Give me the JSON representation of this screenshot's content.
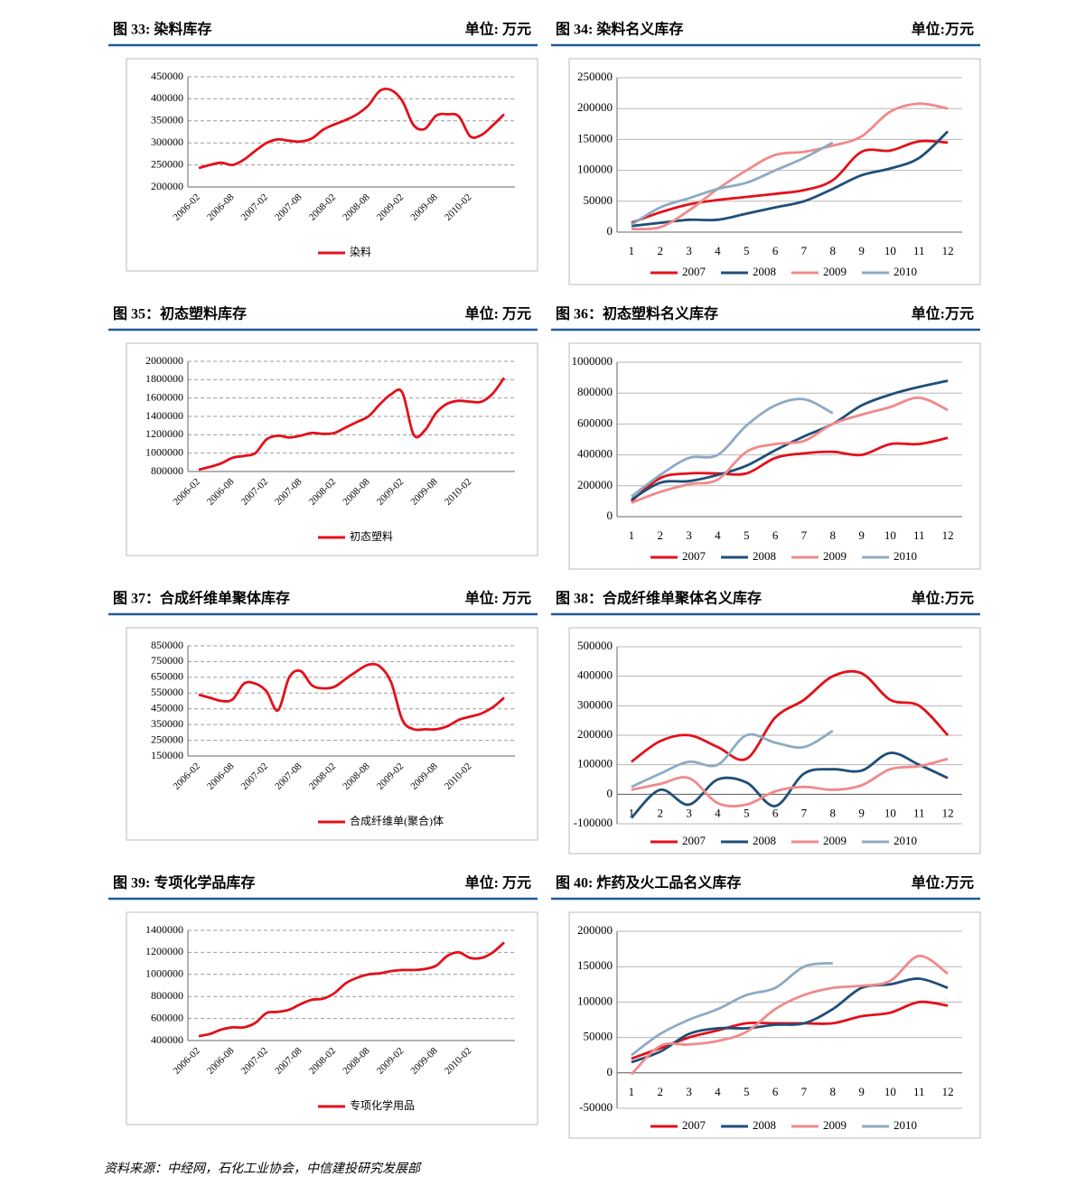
{
  "chart_data": [
    {
      "type": "line",
      "title": "图 33: 染料库存",
      "unit": "单位: 万元",
      "grid": "dashed",
      "legend": "bottom",
      "categories": [
        "2006-02",
        null,
        null,
        "2006-08",
        null,
        null,
        "2007-02",
        null,
        null,
        "2007-08",
        null,
        null,
        "2008-02",
        null,
        null,
        "2008-08",
        null,
        null,
        "2009-02",
        null,
        null,
        "2009-08",
        null,
        null,
        "2010-02",
        null,
        null,
        null
      ],
      "series": [
        {
          "name": "染料",
          "color": "#e3101a",
          "values": [
            243000,
            250000,
            255000,
            250000,
            262000,
            282000,
            300000,
            308000,
            305000,
            303000,
            310000,
            330000,
            342000,
            352000,
            365000,
            385000,
            418000,
            420000,
            395000,
            340000,
            332000,
            362000,
            365000,
            360000,
            315000,
            318000,
            340000,
            365000
          ]
        }
      ],
      "ylim": [
        200000,
        450000
      ],
      "yticks": [
        200000,
        250000,
        300000,
        350000,
        400000,
        450000
      ]
    },
    {
      "type": "line",
      "title": "图 34: 染料名义库存",
      "unit": "单位:万元",
      "grid": "solid",
      "legend": "bottom",
      "categories": [
        "1",
        "2",
        "3",
        "4",
        "5",
        "6",
        "7",
        "8",
        "9",
        "10",
        "11",
        "12"
      ],
      "series": [
        {
          "name": "2007",
          "color": "#e3101a",
          "values": [
            15000,
            32000,
            45000,
            52000,
            57000,
            62000,
            68000,
            84000,
            130000,
            132000,
            147000,
            145000
          ]
        },
        {
          "name": "2008",
          "color": "#1f4e79",
          "values": [
            10000,
            15000,
            20000,
            20000,
            30000,
            40000,
            50000,
            70000,
            92000,
            103000,
            120000,
            163000
          ]
        },
        {
          "name": "2009",
          "color": "#f08a8a",
          "values": [
            5000,
            8000,
            35000,
            70000,
            100000,
            125000,
            130000,
            140000,
            155000,
            195000,
            208000,
            200000
          ]
        },
        {
          "name": "2010",
          "color": "#8eaac4",
          "values": [
            12000,
            40000,
            55000,
            70000,
            80000,
            100000,
            120000,
            145000,
            null,
            null,
            null,
            null
          ]
        }
      ],
      "ylim": [
        0,
        250000
      ],
      "yticks": [
        0,
        50000,
        100000,
        150000,
        200000,
        250000
      ]
    },
    {
      "type": "line",
      "title": "图 35：初态塑料库存",
      "unit": "单位: 万元",
      "grid": "dashed",
      "legend": "bottom",
      "categories": [
        "2006-02",
        null,
        null,
        "2006-08",
        null,
        null,
        "2007-02",
        null,
        null,
        "2007-08",
        null,
        null,
        "2008-02",
        null,
        null,
        "2008-08",
        null,
        null,
        "2009-02",
        null,
        null,
        "2009-08",
        null,
        null,
        "2010-02",
        null,
        null,
        null
      ],
      "series": [
        {
          "name": "初态塑料",
          "color": "#e3101a",
          "values": [
            820000,
            850000,
            890000,
            950000,
            970000,
            1000000,
            1150000,
            1190000,
            1170000,
            1190000,
            1220000,
            1210000,
            1220000,
            1280000,
            1340000,
            1400000,
            1530000,
            1640000,
            1660000,
            1200000,
            1250000,
            1440000,
            1540000,
            1570000,
            1560000,
            1560000,
            1650000,
            1820000
          ]
        }
      ],
      "ylim": [
        800000,
        2000000
      ],
      "yticks": [
        800000,
        1000000,
        1200000,
        1400000,
        1600000,
        1800000,
        2000000
      ]
    },
    {
      "type": "line",
      "title": "图 36：初态塑料名义库存",
      "unit": "单位:万元",
      "grid": "solid",
      "legend": "bottom",
      "categories": [
        "1",
        "2",
        "3",
        "4",
        "5",
        "6",
        "7",
        "8",
        "9",
        "10",
        "11",
        "12"
      ],
      "series": [
        {
          "name": "2007",
          "color": "#e3101a",
          "values": [
            100000,
            250000,
            280000,
            280000,
            280000,
            380000,
            410000,
            420000,
            400000,
            470000,
            470000,
            510000
          ]
        },
        {
          "name": "2008",
          "color": "#1f4e79",
          "values": [
            110000,
            220000,
            230000,
            270000,
            330000,
            430000,
            520000,
            600000,
            720000,
            790000,
            840000,
            880000
          ]
        },
        {
          "name": "2009",
          "color": "#f08a8a",
          "values": [
            90000,
            160000,
            210000,
            240000,
            420000,
            470000,
            490000,
            600000,
            660000,
            710000,
            770000,
            690000
          ]
        },
        {
          "name": "2010",
          "color": "#8eaac4",
          "values": [
            130000,
            270000,
            380000,
            400000,
            590000,
            720000,
            760000,
            670000,
            null,
            null,
            null,
            null
          ]
        }
      ],
      "ylim": [
        0,
        1000000
      ],
      "yticks": [
        0,
        200000,
        400000,
        600000,
        800000,
        1000000
      ]
    },
    {
      "type": "line",
      "title": "图 37：合成纤维单聚体库存",
      "unit": "单位: 万元",
      "grid": "dashed",
      "legend": "bottom",
      "categories": [
        "2006-02",
        null,
        null,
        "2006-08",
        null,
        null,
        "2007-02",
        null,
        null,
        "2007-08",
        null,
        null,
        "2008-02",
        null,
        null,
        "2008-08",
        null,
        null,
        "2009-02",
        null,
        null,
        "2009-08",
        null,
        null,
        "2010-02",
        null,
        null,
        null
      ],
      "series": [
        {
          "name": "合成纤维单(聚合)体",
          "color": "#e3101a",
          "values": [
            540000,
            520000,
            500000,
            510000,
            610000,
            610000,
            560000,
            440000,
            650000,
            690000,
            600000,
            580000,
            590000,
            640000,
            690000,
            730000,
            720000,
            620000,
            380000,
            320000,
            320000,
            320000,
            340000,
            380000,
            400000,
            420000,
            460000,
            520000
          ]
        }
      ],
      "ylim": [
        150000,
        850000
      ],
      "yticks": [
        150000,
        250000,
        350000,
        450000,
        550000,
        650000,
        750000,
        850000
      ]
    },
    {
      "type": "line",
      "title": "图 38：合成纤维单聚体名义库存",
      "unit": "单位:万元",
      "grid": "solid",
      "legend": "bottom",
      "categories": [
        "1",
        "2",
        "3",
        "4",
        "5",
        "6",
        "7",
        "8",
        "9",
        "10",
        "11",
        "12"
      ],
      "series": [
        {
          "name": "2007",
          "color": "#e3101a",
          "values": [
            110000,
            180000,
            200000,
            160000,
            120000,
            260000,
            320000,
            400000,
            410000,
            320000,
            300000,
            200000
          ]
        },
        {
          "name": "2008",
          "color": "#1f4e79",
          "values": [
            -80000,
            15000,
            -35000,
            50000,
            40000,
            -40000,
            70000,
            85000,
            80000,
            140000,
            100000,
            55000
          ]
        },
        {
          "name": "2009",
          "color": "#f08a8a",
          "values": [
            15000,
            35000,
            55000,
            -30000,
            -35000,
            10000,
            25000,
            15000,
            30000,
            85000,
            95000,
            120000
          ]
        },
        {
          "name": "2010",
          "color": "#8eaac4",
          "values": [
            25000,
            70000,
            110000,
            100000,
            200000,
            175000,
            160000,
            215000,
            null,
            null,
            null,
            null
          ]
        }
      ],
      "ylim": [
        -100000,
        500000
      ],
      "yticks": [
        -100000,
        0,
        100000,
        200000,
        300000,
        400000,
        500000
      ]
    },
    {
      "type": "line",
      "title": "图 39: 专项化学品库存",
      "unit": "单位: 万元",
      "grid": "dashed",
      "legend": "bottom",
      "categories": [
        "2006-02",
        null,
        null,
        "2006-08",
        null,
        null,
        "2007-02",
        null,
        null,
        "2007-08",
        null,
        null,
        "2008-02",
        null,
        null,
        "2008-08",
        null,
        null,
        "2009-02",
        null,
        null,
        "2009-08",
        null,
        null,
        "2010-02",
        null,
        null,
        null
      ],
      "series": [
        {
          "name": "专项化学用品",
          "color": "#e3101a",
          "values": [
            440000,
            460000,
            500000,
            520000,
            520000,
            560000,
            650000,
            660000,
            680000,
            730000,
            770000,
            780000,
            830000,
            920000,
            970000,
            1000000,
            1010000,
            1030000,
            1040000,
            1040000,
            1050000,
            1080000,
            1170000,
            1200000,
            1150000,
            1150000,
            1200000,
            1290000
          ]
        }
      ],
      "ylim": [
        400000,
        1400000
      ],
      "yticks": [
        400000,
        600000,
        800000,
        1000000,
        1200000,
        1400000
      ]
    },
    {
      "type": "line",
      "title": "图 40: 炸药及火工品名义库存",
      "unit": "单位:万元",
      "grid": "solid",
      "legend": "bottom",
      "categories": [
        "1",
        "2",
        "3",
        "4",
        "5",
        "6",
        "7",
        "8",
        "9",
        "10",
        "11",
        "12"
      ],
      "series": [
        {
          "name": "2007",
          "color": "#e3101a",
          "values": [
            20000,
            35000,
            50000,
            60000,
            70000,
            70000,
            70000,
            70000,
            80000,
            85000,
            100000,
            95000
          ]
        },
        {
          "name": "2008",
          "color": "#1f4e79",
          "values": [
            15000,
            30000,
            55000,
            63000,
            63000,
            68000,
            70000,
            90000,
            120000,
            125000,
            133000,
            120000
          ]
        },
        {
          "name": "2009",
          "color": "#f08a8a",
          "values": [
            -2000,
            38000,
            40000,
            45000,
            58000,
            90000,
            110000,
            120000,
            123000,
            130000,
            165000,
            140000
          ]
        },
        {
          "name": "2010",
          "color": "#8eaac4",
          "values": [
            25000,
            55000,
            75000,
            90000,
            110000,
            120000,
            150000,
            155000,
            null,
            null,
            null,
            null
          ]
        }
      ],
      "ylim": [
        -50000,
        200000
      ],
      "yticks": [
        -50000,
        0,
        50000,
        100000,
        150000,
        200000
      ]
    }
  ],
  "source": "资料来源：中经网，石化工业协会，中信建投研究发展部"
}
